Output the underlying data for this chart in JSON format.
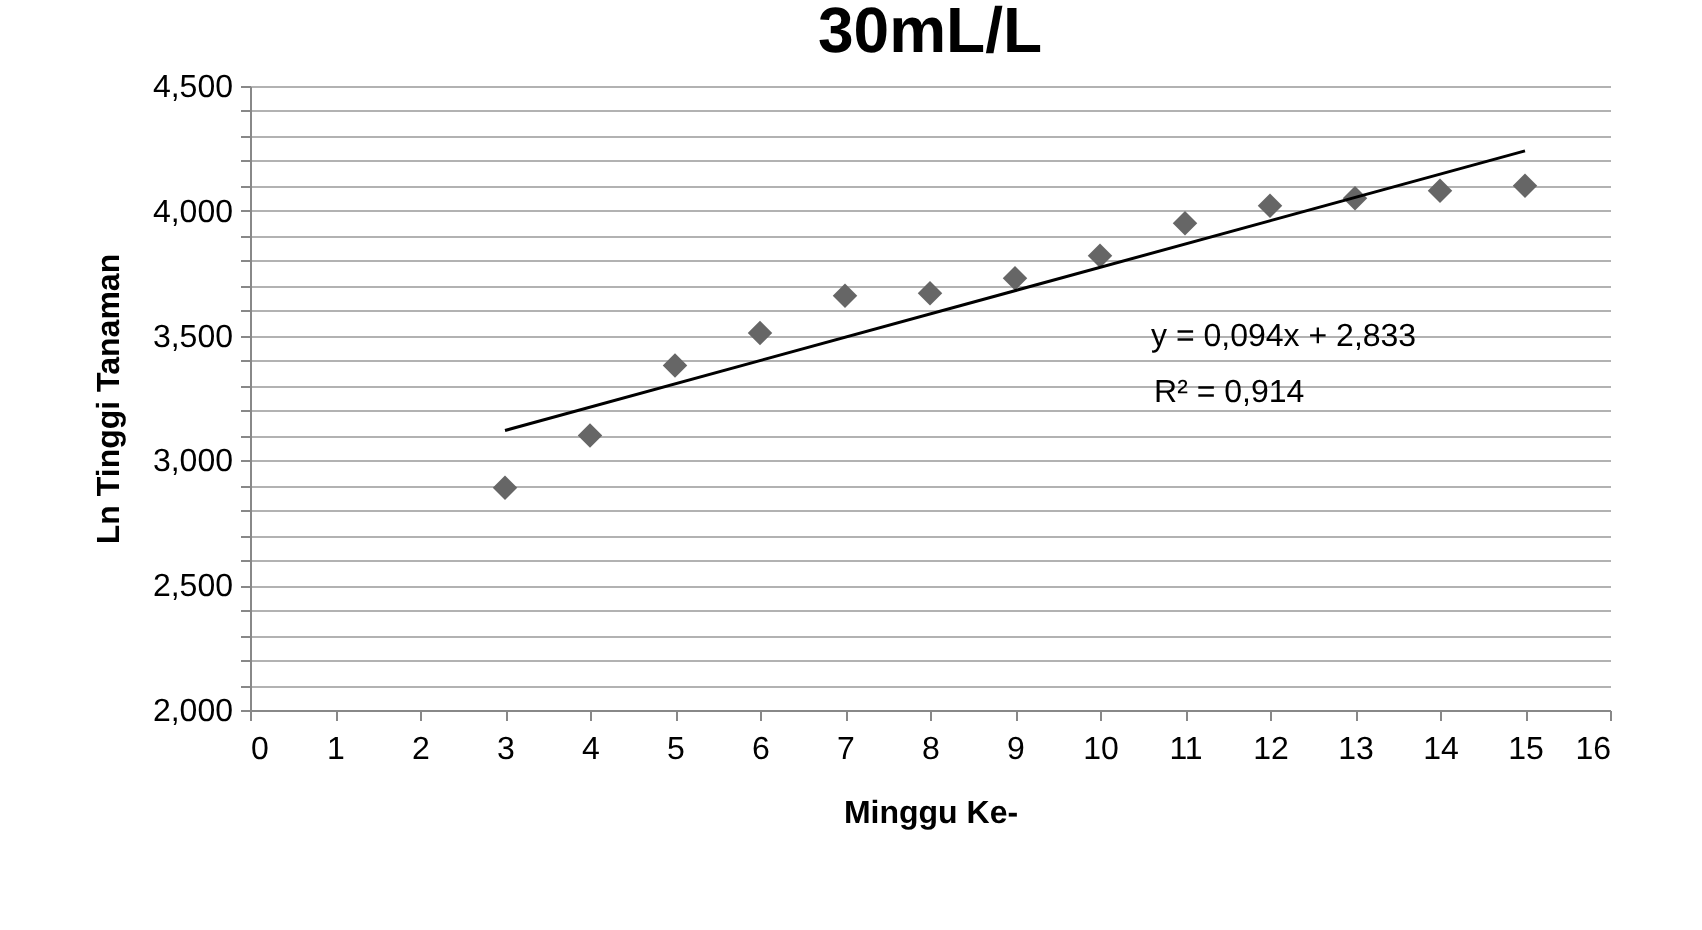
{
  "chart_data": {
    "type": "scatter",
    "title": "30mL/L",
    "xlabel": "Minggu Ke-",
    "ylabel": "Ln Tinggi Tanaman",
    "x": [
      3,
      4,
      5,
      6,
      7,
      8,
      9,
      10,
      11,
      12,
      13,
      14,
      15
    ],
    "series": [
      {
        "color": "#666666",
        "marker": "diamond",
        "values": [
          2.89,
          3.1,
          3.38,
          3.51,
          3.66,
          3.67,
          3.73,
          3.82,
          3.95,
          4.02,
          4.05,
          4.08,
          4.1
        ]
      },
      {
        "type": "line",
        "color": "#000000",
        "x": [
          3,
          15
        ],
        "values": [
          3.12,
          4.24
        ]
      }
    ],
    "xlim": [
      0,
      16
    ],
    "xticks": [
      0,
      1,
      2,
      3,
      4,
      5,
      6,
      7,
      8,
      9,
      10,
      11,
      12,
      13,
      14,
      15,
      16
    ],
    "ylim": [
      2,
      4.5
    ],
    "yticks": [
      {
        "value": 2,
        "label": "2,000"
      },
      {
        "value": 2.1,
        "label": null
      },
      {
        "value": 2.2,
        "label": null
      },
      {
        "value": 2.3,
        "label": null
      },
      {
        "value": 2.4,
        "label": null
      },
      {
        "value": 2.5,
        "label": "2,500"
      },
      {
        "value": 2.6,
        "label": null
      },
      {
        "value": 2.7,
        "label": null
      },
      {
        "value": 2.8,
        "label": null
      },
      {
        "value": 2.9,
        "label": null
      },
      {
        "value": 3,
        "label": "3,000"
      },
      {
        "value": 3.1,
        "label": null
      },
      {
        "value": 3.2,
        "label": null
      },
      {
        "value": 3.3,
        "label": null
      },
      {
        "value": 3.4,
        "label": null
      },
      {
        "value": 3.5,
        "label": "3,500"
      },
      {
        "value": 3.6,
        "label": null
      },
      {
        "value": 3.7,
        "label": null
      },
      {
        "value": 3.8,
        "label": null
      },
      {
        "value": 3.9,
        "label": null
      },
      {
        "value": 4,
        "label": "4,000"
      },
      {
        "value": 4.1,
        "label": null
      },
      {
        "value": 4.2,
        "label": null
      },
      {
        "value": 4.3,
        "label": null
      },
      {
        "value": 4.4,
        "label": null
      },
      {
        "value": 4.5,
        "label": "4,500"
      }
    ],
    "grid": "y",
    "annotations": [
      "y = 0,094x + 2,833",
      "R² = 0,914"
    ]
  }
}
